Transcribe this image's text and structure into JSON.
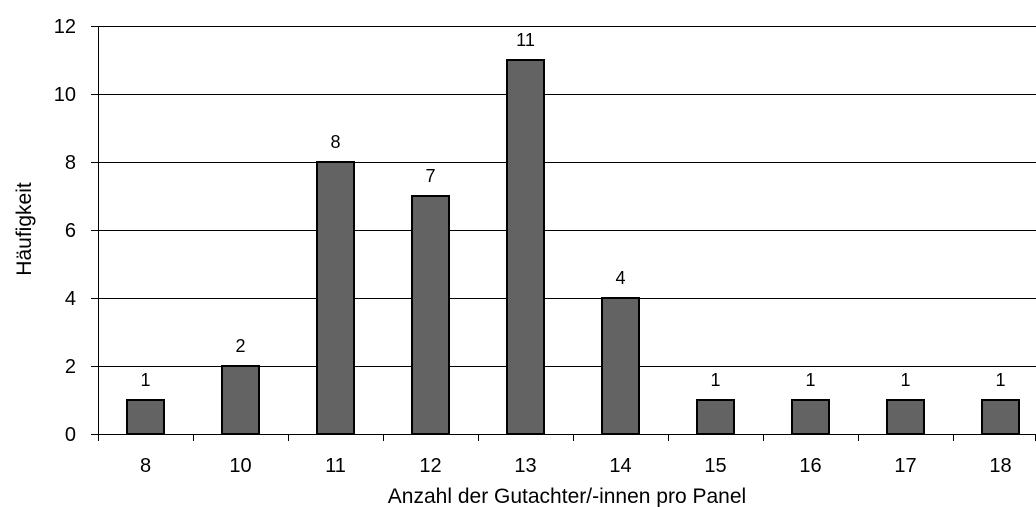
{
  "chart_data": {
    "type": "bar",
    "categories": [
      "8",
      "10",
      "11",
      "12",
      "13",
      "14",
      "15",
      "16",
      "17",
      "18"
    ],
    "values": [
      1,
      2,
      8,
      7,
      11,
      4,
      1,
      1,
      1,
      1
    ],
    "data_labels": [
      "1",
      "2",
      "8",
      "7",
      "11",
      "4",
      "1",
      "1",
      "1",
      "1"
    ],
    "title": "",
    "xlabel": "Anzahl der Gutachter/-innen pro Panel",
    "ylabel": "Häufigkeit",
    "ylim": [
      0,
      12
    ],
    "yticks": [
      0,
      2,
      4,
      6,
      8,
      10,
      12
    ],
    "ytick_labels": [
      "0",
      "2",
      "4",
      "6",
      "8",
      "10",
      "12"
    ],
    "grid": true,
    "legend": "none",
    "colors": {
      "bar_fill": "#636363",
      "bar_stroke": "#000000",
      "grid": "#000000",
      "axis": "#000000",
      "background": "#ffffff"
    }
  }
}
